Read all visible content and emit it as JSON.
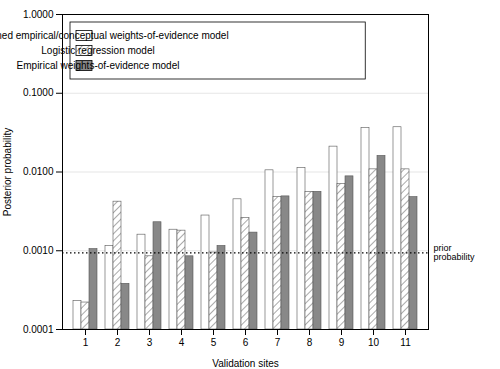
{
  "chart_data": {
    "type": "bar",
    "xlabel": "Validation sites",
    "ylabel": "Posterior probability",
    "categories": [
      "1",
      "2",
      "3",
      "4",
      "5",
      "6",
      "7",
      "8",
      "9",
      "10",
      "11"
    ],
    "series": [
      {
        "name": "Combined empirical/conceptual weights-of-evidence model",
        "color": "white",
        "values": [
          0.00023,
          0.00115,
          0.0016,
          0.00185,
          0.0028,
          0.0045,
          0.0105,
          0.0113,
          0.021,
          0.036,
          0.037
        ]
      },
      {
        "name": "Logistic regression model",
        "values": [
          0.00022,
          0.0042,
          0.00085,
          0.0018,
          0.00095,
          0.0026,
          0.0048,
          0.0056,
          0.007,
          0.0108,
          0.0108
        ]
      },
      {
        "name": "Empirical weights-of-evidence model",
        "color": "#888888",
        "values": [
          0.00105,
          0.00038,
          0.0023,
          0.00085,
          0.00115,
          0.0017,
          0.0049,
          0.0056,
          0.0088,
          0.016,
          0.0048
        ]
      }
    ],
    "annotations": [
      {
        "type": "hline",
        "y": 0.00094,
        "text": "prior\nprobability",
        "line_style": "dotted"
      }
    ],
    "log": "y",
    "ylim": [
      0.0001,
      1.0
    ],
    "yticks": [
      0.0001,
      {
        "value": 0.001,
        "label": "0.0010"
      },
      {
        "value": 0.01,
        "label": "0.0100"
      },
      {
        "value": 0.1,
        "label": "0.1000"
      },
      {
        "value": 1.0,
        "label": "1.0000"
      }
    ],
    "grid": true,
    "legend": "upper left"
  }
}
